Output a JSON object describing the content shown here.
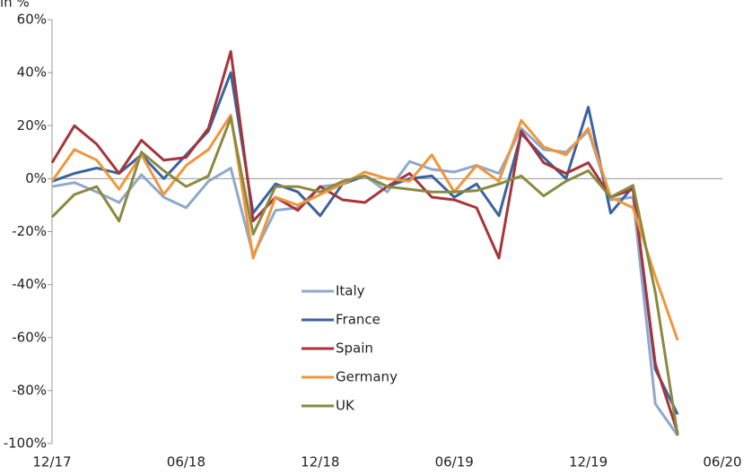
{
  "chart_data": {
    "type": "line",
    "y_unit_label": "in %",
    "categories": [
      "12/17",
      null,
      null,
      null,
      null,
      null,
      "06/18",
      null,
      null,
      null,
      null,
      null,
      "12/18",
      null,
      null,
      null,
      null,
      null,
      "06/19",
      null,
      null,
      null,
      null,
      null,
      "12/19",
      null,
      null,
      null,
      null,
      null,
      "06/20"
    ],
    "series": [
      {
        "name": "Italy",
        "color": "#8fa8cd",
        "values": [
          -3,
          -1.5,
          -5,
          -9,
          1.5,
          -7,
          -11,
          -1,
          4,
          -29,
          -12,
          -11,
          -3,
          -2,
          1,
          -5,
          6.5,
          3.5,
          2.5,
          5,
          2,
          19,
          11,
          10,
          18,
          -8,
          -7,
          -85,
          -97,
          null,
          null
        ]
      },
      {
        "name": "France",
        "color": "#3a62a0",
        "values": [
          -1,
          2,
          4,
          2,
          9,
          0,
          9,
          18,
          40,
          -13,
          -2,
          -5,
          -14,
          -2,
          1,
          -3,
          0,
          1,
          -7,
          -2,
          -14,
          17,
          8,
          0,
          27,
          -13,
          -3,
          -72,
          -89,
          null,
          null
        ]
      },
      {
        "name": "Spain",
        "color": "#a6353a",
        "values": [
          6,
          20,
          13,
          2,
          14.5,
          7,
          8,
          19,
          48,
          -16,
          -7,
          -12,
          -3,
          -8,
          -9,
          -3,
          2,
          -7,
          -8,
          -11,
          -30,
          18,
          6,
          2,
          6,
          -7,
          -4,
          -70,
          -96,
          null,
          null
        ]
      },
      {
        "name": "Germany",
        "color": "#f0963c",
        "values": [
          -1,
          11,
          7,
          -4,
          9,
          -6,
          5,
          11,
          24,
          -30,
          -7,
          -10,
          -6,
          -2,
          2.5,
          0,
          -1,
          9,
          -5,
          5,
          -1,
          22,
          12,
          9,
          19,
          -7,
          -11,
          -37,
          -61,
          null,
          null
        ]
      },
      {
        "name": "UK",
        "color": "#8a8a40",
        "values": [
          -14.5,
          -6,
          -3,
          -16,
          10,
          3,
          -3,
          1,
          23,
          -21,
          -3,
          -3,
          -5,
          -1,
          1,
          -3,
          -4,
          -5,
          -5,
          -4.5,
          -2,
          1,
          -6.5,
          -1,
          3,
          -7,
          -2.5,
          -43,
          -97,
          null,
          null
        ]
      }
    ],
    "ylim": [
      -100,
      60
    ],
    "yticks": [
      {
        "value": -100,
        "label": "-100%"
      },
      {
        "value": -80,
        "label": "-80%"
      },
      {
        "value": -60,
        "label": "-60%"
      },
      {
        "value": -40,
        "label": "-40%"
      },
      {
        "value": -20,
        "label": "-20%"
      },
      {
        "value": 0,
        "label": "0%"
      },
      {
        "value": 20,
        "label": "20%"
      },
      {
        "value": 40,
        "label": "40%"
      },
      {
        "value": 60,
        "label": "60%"
      }
    ],
    "legend_position": "center",
    "grid": false
  }
}
